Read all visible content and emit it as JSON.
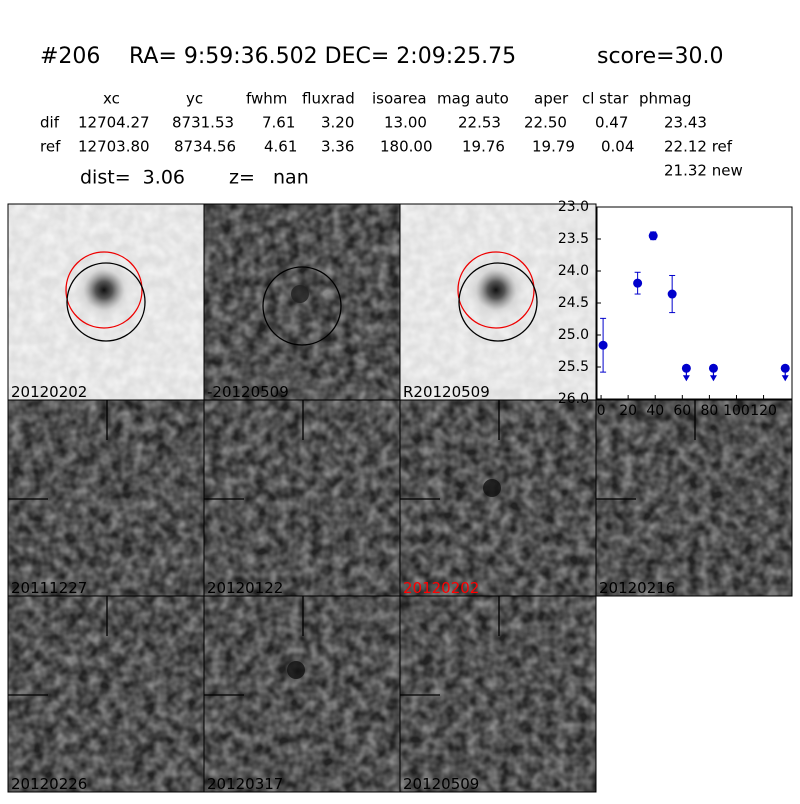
{
  "header": {
    "id": "#206",
    "coords": "RA= 9:59:36.502 DEC= 2:09:25.75",
    "score": "score=30.0"
  },
  "table": {
    "columns": [
      "xc",
      "yc",
      "fwhm",
      "fluxrad",
      "isoarea",
      "mag auto",
      "aper",
      "cl star",
      "phmag"
    ],
    "rows": [
      {
        "label": "dif",
        "cells": [
          "12704.27",
          "8731.53",
          "7.61",
          "3.20",
          "13.00",
          "22.53",
          "22.50",
          "0.47",
          "23.43"
        ]
      },
      {
        "label": "ref",
        "cells": [
          "12703.80",
          "8734.56",
          "4.61",
          "3.36",
          "180.00",
          "19.76",
          "19.79",
          "0.04",
          "22.12 ref"
        ]
      }
    ],
    "note": "21.32 new"
  },
  "dist": "dist=  3.06",
  "z": "z=   nan",
  "stamps": [
    {
      "label": "20120202"
    },
    {
      "label": "-20120509"
    },
    {
      "label": "R20120509"
    },
    {
      "label": "20111227"
    },
    {
      "label": "20120122"
    },
    {
      "label": "20120202",
      "color": "#ff0000"
    },
    {
      "label": "20120216"
    },
    {
      "label": "20120226"
    },
    {
      "label": "20120317"
    },
    {
      "label": "20120509"
    }
  ],
  "chart_data": {
    "type": "scatter",
    "xlim": [
      -3,
      141
    ],
    "xticks": [
      0,
      20,
      40,
      60,
      80,
      100,
      120
    ],
    "ylim": [
      23,
      26
    ],
    "yticks": [
      {
        "value": 23,
        "label": "23.0"
      },
      {
        "value": 23.5,
        "label": "23.5"
      },
      {
        "value": 24,
        "label": "24.0"
      },
      {
        "value": 24.5,
        "label": "24.5"
      },
      {
        "value": 25,
        "label": "25.0"
      },
      {
        "value": 25.5,
        "label": "25.5"
      },
      {
        "value": 26,
        "label": "26.0"
      }
    ],
    "invert_y": true,
    "series": [
      {
        "color": "#0000cc",
        "x": [
          1.5,
          27,
          38.5,
          52.5,
          63,
          83,
          136
        ],
        "values": [
          25.16,
          24.19,
          23.45,
          24.36,
          25.52,
          25.52,
          25.52
        ],
        "errors": [
          0.42,
          0.17,
          0.06,
          0.29,
          null,
          null,
          null
        ],
        "upper_limit": [
          false,
          false,
          false,
          false,
          true,
          true,
          true
        ]
      }
    ]
  }
}
